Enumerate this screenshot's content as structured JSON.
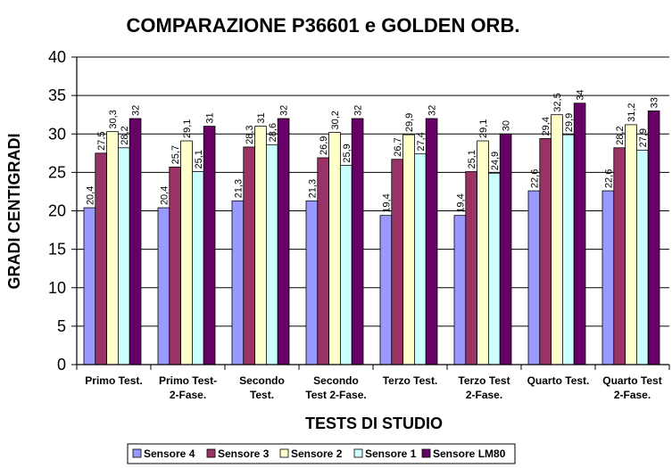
{
  "chart_data": {
    "type": "bar",
    "title": "COMPARAZIONE P36601 e GOLDEN ORB.",
    "xlabel": "TESTS DI STUDIO",
    "ylabel": "GRADI CENTIGRADI",
    "ylim": [
      0,
      40
    ],
    "yticks": [
      "0",
      "5",
      "10",
      "15",
      "20",
      "25",
      "30",
      "35",
      "40"
    ],
    "grid": true,
    "legend_position": "bottom",
    "categories": [
      [
        "Primo Test."
      ],
      [
        "Primo Test-",
        "2-Fase."
      ],
      [
        "Secondo",
        "Test."
      ],
      [
        "Secondo",
        "Test 2-Fase."
      ],
      [
        "Terzo Test."
      ],
      [
        "Terzo Test",
        "2-Fase."
      ],
      [
        "Quarto Test."
      ],
      [
        "Quarto Test",
        "2-Fase."
      ]
    ],
    "series": [
      {
        "name": "Sensore 4",
        "color": "#9999ff",
        "values": [
          20.4,
          20.4,
          21.3,
          21.3,
          19.4,
          19.4,
          22.6,
          22.6
        ],
        "labels": [
          "20,4",
          "20,4",
          "21,3",
          "21,3",
          "19,4",
          "19,4",
          "22,6",
          "22,6"
        ]
      },
      {
        "name": "Sensore 3",
        "color": "#993366",
        "values": [
          27.5,
          25.7,
          28.3,
          26.9,
          26.7,
          25.1,
          29.4,
          28.2
        ],
        "labels": [
          "27,5",
          "25,7",
          "28,3",
          "26,9",
          "26,7",
          "25,1",
          "29,4",
          "28,2"
        ]
      },
      {
        "name": "Sensore 2",
        "color": "#ffffcc",
        "values": [
          30.3,
          29.1,
          31,
          30.2,
          29.9,
          29.1,
          32.5,
          31.2
        ],
        "labels": [
          "30,3",
          "29,1",
          "31",
          "30,2",
          "29,9",
          "29,1",
          "32,5",
          "31,2"
        ]
      },
      {
        "name": "Sensore 1",
        "color": "#ccffff",
        "values": [
          28.2,
          25.1,
          28.6,
          25.9,
          27.4,
          24.9,
          29.9,
          27.9
        ],
        "labels": [
          "28,2",
          "25,1",
          "28,6",
          "25,9",
          "27,4",
          "24,9",
          "29,9",
          "27,9"
        ]
      },
      {
        "name": "Sensore LM80",
        "color": "#660066",
        "values": [
          32,
          31,
          32,
          32,
          32,
          30,
          34,
          33
        ],
        "labels": [
          "32",
          "31",
          "32",
          "32",
          "32",
          "30",
          "34",
          "33"
        ]
      }
    ]
  }
}
